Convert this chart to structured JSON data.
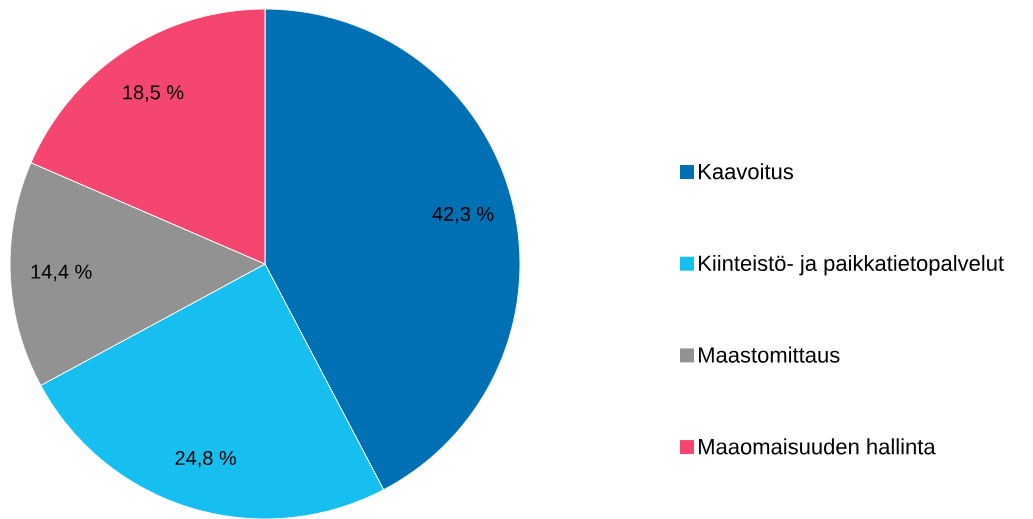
{
  "chart_data": {
    "type": "pie",
    "categories": [
      "Kaavoitus",
      "Kiinteistö- ja paikkatietopalvelut",
      "Maastomittaus",
      "Maaomaisuuden hallinta"
    ],
    "values": [
      42.3,
      24.8,
      14.4,
      18.5
    ],
    "colors": [
      "#0070b5",
      "#16bff0",
      "#929292",
      "#f5466f"
    ],
    "value_labels": [
      "42,3 %",
      "24,8 %",
      "14,4 %",
      "18,5 %"
    ],
    "legend": "right"
  }
}
